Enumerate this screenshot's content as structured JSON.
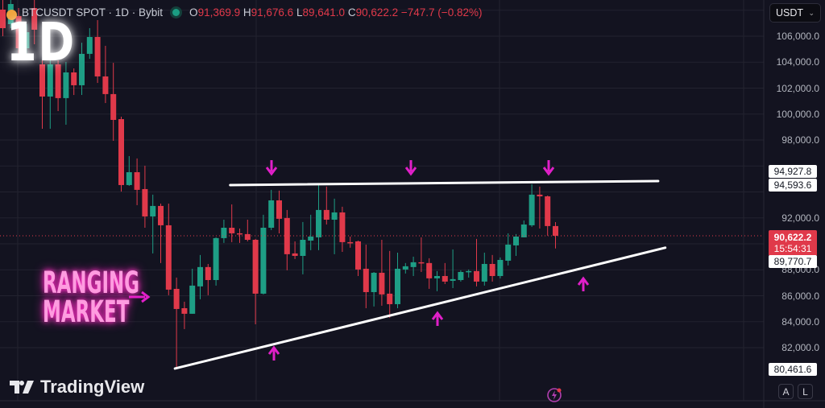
{
  "header": {
    "symbol": "BTCUSDT SPOT · 1D · Bybit",
    "open_label": "O",
    "open": "91,369.9",
    "high_label": "H",
    "high": "91,676.6",
    "low_label": "L",
    "low": "89,641.0",
    "close_label": "C",
    "close": "90,622.2",
    "change": "−747.7 (−0.82%)"
  },
  "timeframe_overlay": "1D",
  "annotation_text": [
    "RANGING",
    "MARKET"
  ],
  "brand": "TradingView",
  "currency_selector": "USDT",
  "scale_buttons": [
    "A",
    "L"
  ],
  "price_axis": [
    "106,000.0",
    "104,000.0",
    "102,000.0",
    "100,000.0",
    "98,000.0",
    "92,000.0",
    "88,000.0",
    "86,000.0",
    "84,000.0",
    "82,000.0"
  ],
  "price_tags": {
    "level_1": "94,927.8",
    "level_2": "94,593.6",
    "current": "90,622.2",
    "countdown": "15:54:31",
    "level_3": "89,770.7",
    "low": "80,461.6"
  },
  "colors": {
    "up": "#1e9e85",
    "down": "#e0394a",
    "arrows": "#e01fc8",
    "lines": "#ffffff",
    "background": "#131320"
  },
  "icons": {
    "coin": "bitcoin-icon",
    "status": "market-open-dot",
    "bolt": "lightning-icon",
    "dropdown": "chevron-down-icon"
  },
  "chart_data": {
    "type": "candlestick",
    "title": "BTCUSDT SPOT · 1D · Bybit",
    "ylim": [
      80000,
      108800
    ],
    "grid": true,
    "ohlc_fields": [
      "open",
      "high",
      "low",
      "close"
    ],
    "candles": [
      [
        108050,
        108790,
        106000,
        106620
      ],
      [
        106930,
        108790,
        106620,
        108480
      ],
      [
        107550,
        108170,
        104450,
        105070
      ],
      [
        105070,
        106930,
        104140,
        106310
      ],
      [
        108170,
        108790,
        105380,
        106500
      ],
      [
        103830,
        104140,
        98870,
        101350
      ],
      [
        101350,
        104140,
        98870,
        103830
      ],
      [
        103830,
        104140,
        100230,
        101230
      ],
      [
        101230,
        104020,
        99180,
        103210
      ],
      [
        103210,
        103520,
        101470,
        102220
      ],
      [
        102220,
        105500,
        101470,
        104640
      ],
      [
        104640,
        106620,
        104260,
        105940
      ],
      [
        105940,
        107240,
        102400,
        102900
      ],
      [
        102900,
        105260,
        100850,
        101540
      ],
      [
        101540,
        103950,
        97940,
        99550
      ],
      [
        99610,
        99800,
        94030,
        94530
      ],
      [
        94530,
        96760,
        94470,
        95520
      ],
      [
        95520,
        96580,
        92980,
        94160
      ],
      [
        94220,
        96020,
        91240,
        92110
      ],
      [
        92110,
        93790,
        89260,
        92920
      ],
      [
        92920,
        93100,
        88520,
        91430
      ],
      [
        91430,
        93100,
        86040,
        86470
      ],
      [
        86530,
        87400,
        80461.6,
        84980
      ],
      [
        85040,
        85540,
        83430,
        84610
      ],
      [
        84610,
        88080,
        84610,
        86780
      ],
      [
        86720,
        89140,
        85730,
        88210
      ],
      [
        88210,
        88450,
        86040,
        87210
      ],
      [
        87210,
        90500,
        86780,
        90440
      ],
      [
        90440,
        91860,
        90070,
        91240
      ],
      [
        91240,
        93040,
        90130,
        90810
      ],
      [
        90810,
        91180,
        90070,
        90750
      ],
      [
        90750,
        91860,
        90190,
        90310
      ],
      [
        90310,
        90380,
        83800,
        86160
      ],
      [
        86160,
        92240,
        86100,
        91240
      ],
      [
        91240,
        94160,
        91060,
        93350
      ],
      [
        93350,
        94100,
        90810,
        91930
      ],
      [
        91990,
        92610,
        87960,
        89200
      ],
      [
        89260,
        90190,
        88830,
        89070
      ],
      [
        89070,
        91680,
        87650,
        90310
      ],
      [
        90250,
        92240,
        89510,
        90560
      ],
      [
        90500,
        94530,
        89510,
        92610
      ],
      [
        92610,
        94410,
        91490,
        91860
      ],
      [
        91860,
        93480,
        89200,
        92420
      ],
      [
        92420,
        92860,
        89380,
        90130
      ],
      [
        90130,
        90560,
        89700,
        90070
      ],
      [
        90190,
        90250,
        87520,
        88020
      ],
      [
        88080,
        89940,
        85040,
        86280
      ],
      [
        86280,
        87830,
        85170,
        87770
      ],
      [
        87770,
        90310,
        85230,
        86100
      ],
      [
        86160,
        89450,
        84300,
        85350
      ],
      [
        85350,
        89320,
        85040,
        88080
      ],
      [
        88020,
        88520,
        87710,
        88270
      ],
      [
        88210,
        89010,
        87520,
        88580
      ],
      [
        88580,
        90500,
        87830,
        88520
      ],
      [
        88520,
        88890,
        86530,
        87340
      ],
      [
        87340,
        87900,
        86350,
        87520
      ],
      [
        87520,
        88520,
        86900,
        87090
      ],
      [
        87150,
        89570,
        86590,
        87280
      ],
      [
        87210,
        87960,
        87090,
        87830
      ],
      [
        87830,
        88020,
        87400,
        87900
      ],
      [
        87900,
        90380,
        86720,
        87090
      ],
      [
        87090,
        89320,
        86780,
        88450
      ],
      [
        88450,
        89140,
        87090,
        87520
      ],
      [
        87520,
        88950,
        87340,
        88760
      ],
      [
        88700,
        90810,
        88330,
        89940
      ],
      [
        89880,
        90750,
        89070,
        90560
      ],
      [
        90500,
        91800,
        90500,
        91490
      ],
      [
        91430,
        94593.6,
        91310,
        93790
      ],
      [
        93790,
        94410,
        91180,
        93660
      ],
      [
        93660,
        93720,
        90630,
        91370
      ],
      [
        91369.9,
        91676.6,
        89641.0,
        90622.2
      ]
    ],
    "trendlines": [
      {
        "role": "resistance",
        "from": {
          "bar": 28.8,
          "price": 94530
        },
        "to": {
          "bar": 83.0,
          "price": 94840
        }
      },
      {
        "role": "support",
        "from": {
          "bar": 21.8,
          "price": 80390
        },
        "to": {
          "bar": 83.9,
          "price": 89700
        }
      }
    ],
    "current_price": 90622.2
  }
}
